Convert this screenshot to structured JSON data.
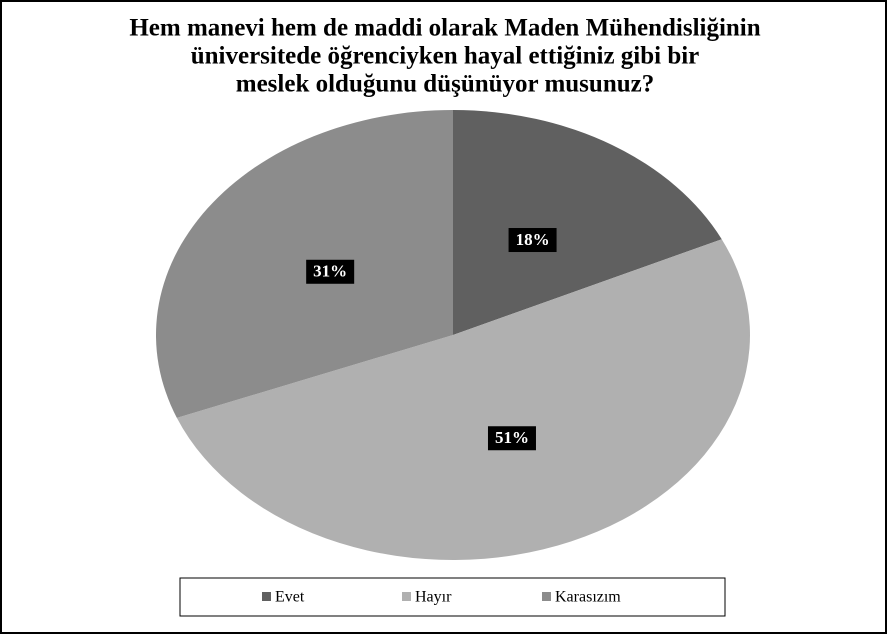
{
  "chart_data": {
    "type": "pie",
    "title": [
      "Hem manevi hem de maddi olarak Maden Mühendisliğinin",
      "üniversitede öğrenciyken hayal ettiğiniz gibi bir",
      "meslek olduğunu düşünüyor musunuz?"
    ],
    "categories": [
      "Evet",
      "Hayır",
      "Karasızım"
    ],
    "values": [
      18,
      51,
      31
    ],
    "value_labels": [
      "18%",
      "51%",
      "31%"
    ],
    "colors": [
      "#606060",
      "#b0b0b0",
      "#8c8c8c"
    ],
    "legend": "bottom"
  }
}
